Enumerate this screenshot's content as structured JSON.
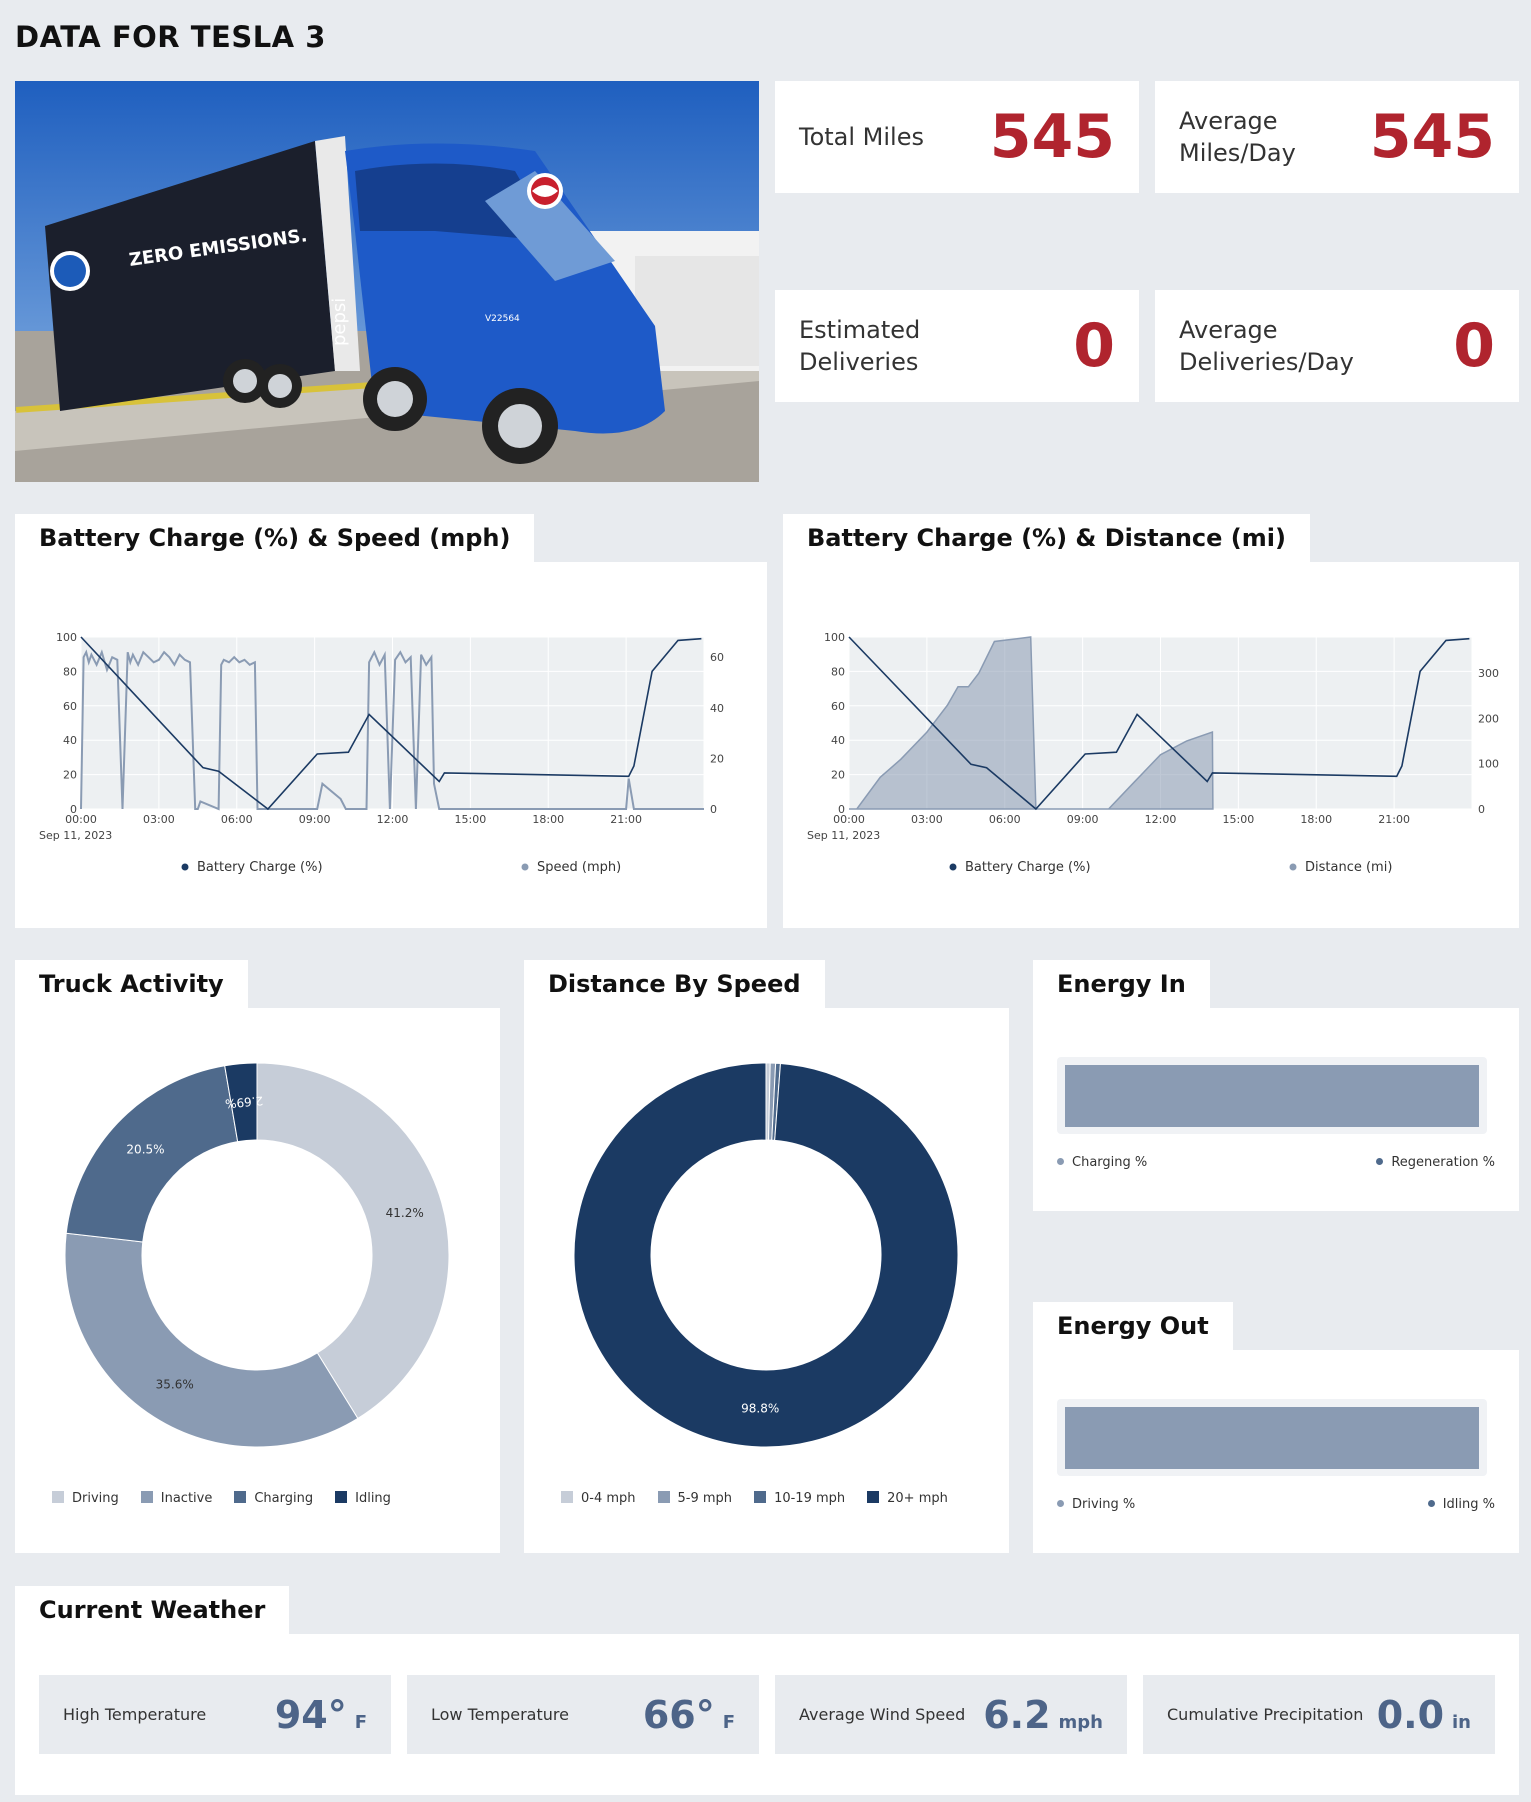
{
  "page": {
    "title": "DATA FOR TESLA 3"
  },
  "kpis": [
    {
      "label_line1": "Total Miles",
      "label_line2": "",
      "value": "545"
    },
    {
      "label_line1": "Average",
      "label_line2": "Miles/Day",
      "value": "545"
    },
    {
      "label_line1": "Estimated",
      "label_line2": "Deliveries",
      "value": "0"
    },
    {
      "label_line1": "Average",
      "label_line2": "Deliveries/Day",
      "value": "0"
    }
  ],
  "photo": {
    "trailer_text": "ZERO EMISSIONS.",
    "brand": "pepsi",
    "unit_id": "V22564"
  },
  "chart_speed": {
    "title": "Battery Charge (%) & Speed (mph)",
    "x_ticks": [
      "00:00",
      "03:00",
      "06:00",
      "09:00",
      "12:00",
      "15:00",
      "18:00",
      "21:00"
    ],
    "date_label": "Sep 11, 2023",
    "left_ticks": [
      "0",
      "20",
      "40",
      "60",
      "80",
      "100"
    ],
    "right_ticks": [
      "0",
      "20",
      "40",
      "60"
    ],
    "legend": [
      "Battery Charge (%)",
      "Speed (mph)"
    ]
  },
  "chart_distance": {
    "title": "Battery Charge (%) & Distance (mi)",
    "x_ticks": [
      "00:00",
      "03:00",
      "06:00",
      "09:00",
      "12:00",
      "15:00",
      "18:00",
      "21:00"
    ],
    "date_label": "Sep 11, 2023",
    "left_ticks": [
      "0",
      "20",
      "40",
      "60",
      "80",
      "100"
    ],
    "right_ticks": [
      "0",
      "100",
      "200",
      "300"
    ],
    "legend": [
      "Battery Charge (%)",
      "Distance (mi)"
    ]
  },
  "truck_activity": {
    "title": "Truck Activity",
    "legend": [
      "Driving",
      "Inactive",
      "Charging",
      "Idling"
    ]
  },
  "distance_by_speed": {
    "title": "Distance By Speed",
    "legend": [
      "0-4 mph",
      "5-9 mph",
      "10-19 mph",
      "20+ mph"
    ]
  },
  "energy_in": {
    "title": "Energy In",
    "legend": [
      "Charging %",
      "Regeneration %"
    ]
  },
  "energy_out": {
    "title": "Energy Out",
    "legend": [
      "Driving %",
      "Idling %"
    ]
  },
  "weather": {
    "title": "Current Weather",
    "items": [
      {
        "label": "High Temperature",
        "value": "94°",
        "unit": "F"
      },
      {
        "label": "Low Temperature",
        "value": "66°",
        "unit": "F"
      },
      {
        "label": "Average Wind Speed",
        "value": "6.2",
        "unit": "mph"
      },
      {
        "label": "Cumulative Precipitation",
        "value": "0.0",
        "unit": "in"
      }
    ]
  },
  "colors": {
    "accent_red": "#b0242e",
    "navy": "#1b3a63",
    "slate": "#4f6a8c",
    "steel": "#8a9bb3",
    "light": "#c6cdd8"
  },
  "chart_data": [
    {
      "type": "line",
      "title": "Battery Charge (%) & Speed (mph)",
      "x_unit": "hours since 00:00 Sep 11, 2023",
      "xlim": [
        0,
        24
      ],
      "ylim": [
        0,
        100
      ],
      "y2lim": [
        0,
        68
      ],
      "series": [
        {
          "name": "Battery Charge (%)",
          "axis": "left",
          "x": [
            0,
            4.7,
            5.3,
            7.2,
            9.1,
            10.3,
            11.1,
            13.8,
            14.0,
            21.1,
            21.3,
            22.0,
            23.0,
            23.9
          ],
          "y": [
            100,
            24,
            22,
            0,
            32,
            33,
            55,
            16,
            21,
            19,
            25,
            80,
            98,
            99
          ]
        },
        {
          "name": "Speed (mph)",
          "axis": "right",
          "x": [
            0,
            0.1,
            0.2,
            0.3,
            0.4,
            0.6,
            0.8,
            1.0,
            1.2,
            1.4,
            1.6,
            1.8,
            1.9,
            2.0,
            2.2,
            2.4,
            2.6,
            2.8,
            3.0,
            3.2,
            3.4,
            3.6,
            3.8,
            4.0,
            4.2,
            4.4,
            4.5,
            4.6,
            5.3,
            5.4,
            5.5,
            5.7,
            5.9,
            6.1,
            6.3,
            6.5,
            6.7,
            6.8,
            6.9,
            7.2,
            9.1,
            9.3,
            10.0,
            10.2,
            11.0,
            11.1,
            11.3,
            11.5,
            11.7,
            11.9,
            12.1,
            12.3,
            12.5,
            12.7,
            12.9,
            13.1,
            13.3,
            13.5,
            13.6,
            13.8,
            14.0,
            21.0,
            21.1,
            21.3,
            24
          ],
          "y": [
            0,
            60,
            62,
            58,
            61,
            57,
            62,
            55,
            60,
            59,
            0,
            62,
            58,
            61,
            57,
            62,
            60,
            58,
            59,
            62,
            60,
            57,
            61,
            59,
            58,
            0,
            0,
            3,
            0,
            57,
            59,
            58,
            60,
            58,
            59,
            57,
            58,
            0,
            0,
            0,
            0,
            10,
            4,
            0,
            0,
            58,
            62,
            57,
            61,
            0,
            59,
            62,
            58,
            60,
            0,
            61,
            57,
            60,
            10,
            0,
            0,
            0,
            12,
            0,
            0
          ]
        }
      ]
    },
    {
      "type": "area",
      "title": "Battery Charge (%) & Distance (mi)",
      "x_unit": "hours since 00:00 Sep 11, 2023",
      "xlim": [
        0,
        24
      ],
      "ylim": [
        0,
        100
      ],
      "y2lim": [
        0,
        380
      ],
      "series": [
        {
          "name": "Battery Charge (%)",
          "axis": "left",
          "x": [
            0,
            4.7,
            5.3,
            7.2,
            9.1,
            10.3,
            11.1,
            13.8,
            14.0,
            21.1,
            21.3,
            22.0,
            23.0,
            23.9
          ],
          "y": [
            100,
            26,
            24,
            0,
            32,
            33,
            55,
            16,
            21,
            19,
            25,
            80,
            98,
            99
          ]
        },
        {
          "name": "Distance (mi)",
          "axis": "right",
          "x": [
            0,
            0.3,
            1.2,
            2.0,
            3.0,
            3.8,
            4.2,
            4.6,
            5.0,
            5.6,
            7.0,
            7.2,
            10.0,
            11.0,
            12.0,
            13.0,
            14.0,
            14.02
          ],
          "y": [
            0,
            0,
            70,
            110,
            170,
            230,
            270,
            270,
            300,
            370,
            380,
            0,
            0,
            60,
            120,
            150,
            170,
            0
          ]
        }
      ]
    },
    {
      "type": "pie",
      "title": "Truck Activity",
      "categories": [
        "Driving",
        "Inactive",
        "Charging",
        "Idling"
      ],
      "values": [
        41.2,
        35.6,
        20.5,
        2.69
      ],
      "labels": [
        "41.2%",
        "35.6%",
        "20.5%",
        "2.69%"
      ]
    },
    {
      "type": "pie",
      "title": "Distance By Speed",
      "categories": [
        "0-4 mph",
        "5-9 mph",
        "10-19 mph",
        "20+ mph"
      ],
      "values": [
        0.35,
        0.45,
        0.4,
        98.8
      ],
      "labels": [
        "",
        "",
        "",
        "98.8%"
      ]
    },
    {
      "type": "bar",
      "title": "Energy In",
      "categories": [
        "Charging %",
        "Regeneration %"
      ],
      "values": [
        100,
        0
      ],
      "orientation": "horizontal-stacked"
    },
    {
      "type": "bar",
      "title": "Energy Out",
      "categories": [
        "Driving %",
        "Idling %"
      ],
      "values": [
        100,
        0
      ],
      "orientation": "horizontal-stacked"
    }
  ]
}
